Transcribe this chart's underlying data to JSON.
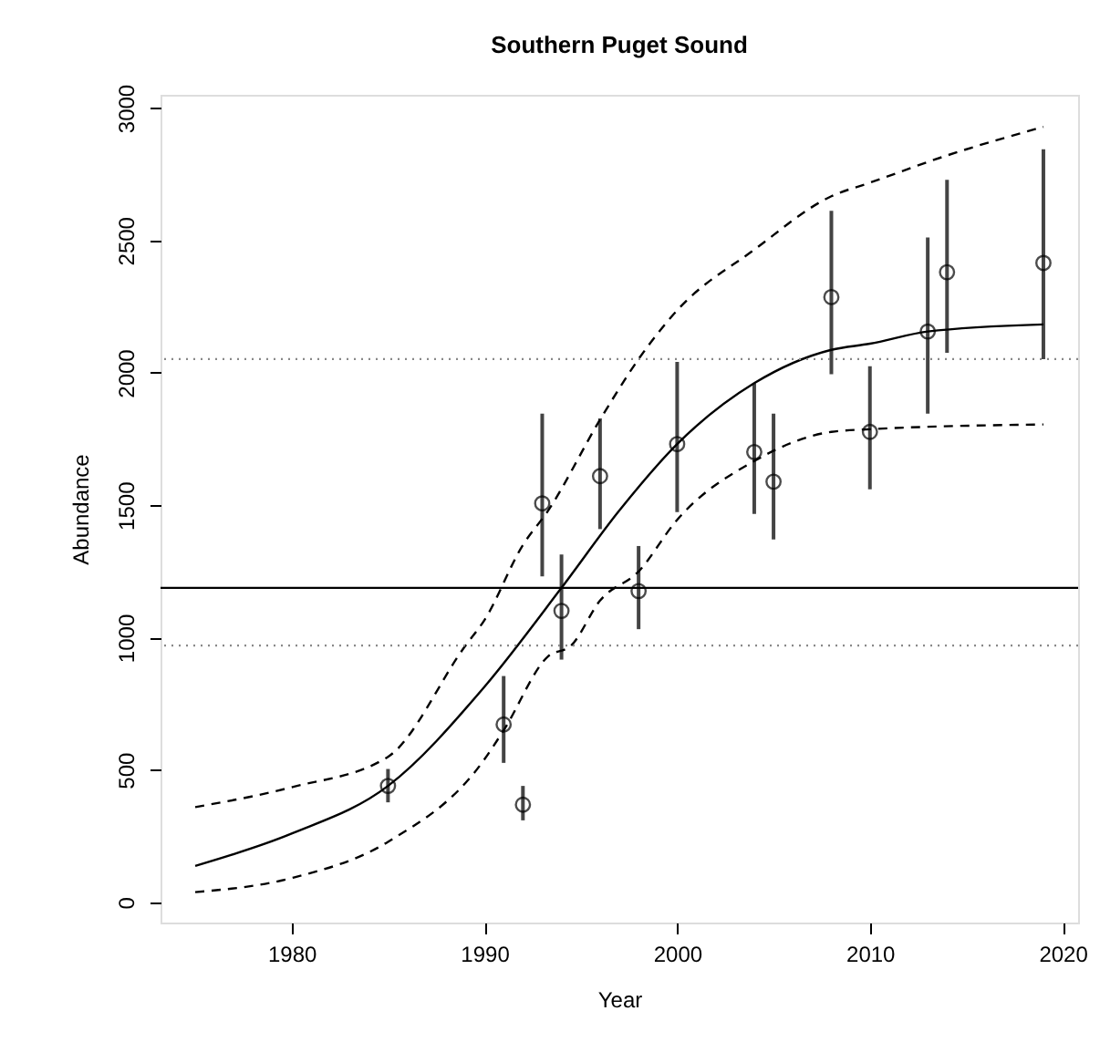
{
  "chart_data": {
    "type": "scatter",
    "title": "Southern Puget Sound",
    "xlabel": "Year",
    "ylabel": "Abundance",
    "xlim": [
      1973.2,
      2020.8
    ],
    "ylim": [
      -76,
      3050
    ],
    "xticks": [
      1980,
      1990,
      2000,
      2010,
      2020
    ],
    "yticks": [
      0,
      500,
      1000,
      1500,
      2000,
      2500,
      3000
    ],
    "grid": false,
    "series": [
      {
        "color": "#000000",
        "marker": "circle",
        "x": [
          1985,
          1991,
          1992,
          1993,
          1994,
          1996,
          1998,
          2000,
          2004,
          2005,
          2008,
          2010,
          2013,
          2014,
          2019
        ],
        "values": [
          440,
          672,
          369,
          1507,
          1101,
          1610,
          1176,
          1731,
          1701,
          1589,
          2286,
          1777,
          2156,
          2380,
          2415
        ],
        "errors": [
          [
            378,
            504
          ],
          [
            527,
            855
          ],
          [
            310,
            440
          ],
          [
            1231,
            1846
          ],
          [
            917,
            1314
          ],
          [
            1410,
            1828
          ],
          [
            1032,
            1346
          ],
          [
            1474,
            2041
          ],
          [
            1467,
            1961
          ],
          [
            1371,
            1846
          ],
          [
            1995,
            2612
          ],
          [
            1560,
            2025
          ],
          [
            1846,
            2511
          ],
          [
            2076,
            2729
          ],
          [
            2052,
            2844
          ]
        ]
      },
      {
        "type": "line",
        "color": "#000000",
        "line_style": "solid",
        "x": [
          1975,
          1980,
          1985,
          1990,
          1994,
          1997,
          2000,
          2004,
          2008,
          2010,
          2013,
          2019
        ],
        "values": [
          138,
          260,
          440,
          814,
          1188,
          1480,
          1731,
          1961,
          2087,
          2110,
          2156,
          2183
        ]
      },
      {
        "type": "line",
        "color": "#000000",
        "line_style": "dashed",
        "x": [
          1975,
          1980,
          1985,
          1989,
          1990,
          1992,
          1993.3,
          1996,
          1998,
          2000,
          2004,
          2008,
          2010,
          2014,
          2019
        ],
        "values": [
          360,
          435,
          550,
          968,
          1066,
          1350,
          1479,
          1823,
          2052,
          2236,
          2465,
          2667,
          2718,
          2821,
          2929
        ]
      },
      {
        "type": "line",
        "color": "#000000",
        "line_style": "dashed",
        "x": [
          1975,
          1980,
          1985,
          1990,
          1991,
          1993.3,
          1994.5,
          1996,
          1998,
          2000,
          2004,
          2008,
          2010,
          2019
        ],
        "values": [
          39,
          92,
          229,
          540,
          650,
          929,
          970,
          1140,
          1250,
          1445,
          1667,
          1777,
          1787,
          1805
        ]
      }
    ],
    "ref_lines": [
      {
        "axis": "y",
        "value": 1188,
        "color": "#000000",
        "line_style": "solid"
      },
      {
        "axis": "y",
        "value": 2052,
        "color": "#888888",
        "line_style": "dotted"
      },
      {
        "axis": "y",
        "value": 970,
        "color": "#888888",
        "line_style": "dotted"
      }
    ]
  }
}
